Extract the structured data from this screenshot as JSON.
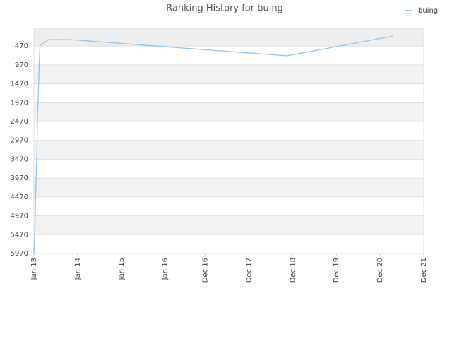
{
  "chart_data": {
    "type": "line",
    "title": "Ranking History for buing",
    "x": [
      2013.0,
      2013.02,
      2013.03,
      2013.05,
      2013.07,
      2013.08,
      2013.1,
      2013.12,
      2013.14,
      2013.34,
      2013.81,
      2018.79,
      2021.22
    ],
    "series": [
      {
        "name": "buing",
        "color": "#8ec3f0",
        "values": [
          5970,
          5518,
          4863,
          4022,
          3273,
          2432,
          1777,
          991,
          449,
          299,
          299,
          730,
          206
        ]
      }
    ],
    "xlim": [
      2013.0,
      2021.92
    ],
    "xticks": [
      {
        "value": 2013.0,
        "label": "Jan.13"
      },
      {
        "value": 2014.0,
        "label": "Jan.14"
      },
      {
        "value": 2015.0,
        "label": "Jan.15"
      },
      {
        "value": 2016.0,
        "label": "Jan.16"
      },
      {
        "value": 2016.92,
        "label": "Dec.16"
      },
      {
        "value": 2017.92,
        "label": "Dec.17"
      },
      {
        "value": 2018.92,
        "label": "Dec.18"
      },
      {
        "value": 2019.92,
        "label": "Dec.19"
      },
      {
        "value": 2020.92,
        "label": "Dec.20"
      },
      {
        "value": 2021.92,
        "label": "Dec.21"
      }
    ],
    "ylim": [
      5970,
      0
    ],
    "yticks": [
      470,
      970,
      1470,
      1970,
      2470,
      2970,
      3470,
      3970,
      4470,
      4970,
      5470,
      5970
    ],
    "grid": true
  }
}
